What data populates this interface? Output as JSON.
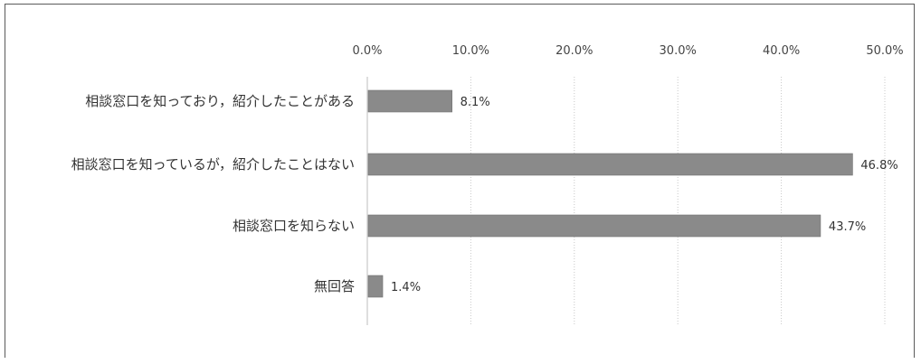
{
  "chart_data": {
    "type": "bar",
    "orientation": "horizontal",
    "title": "",
    "xlabel": "",
    "ylabel": "",
    "categories": [
      "相談窓口を知っており，紹介したことがある",
      "相談窓口を知っているが，紹介したことはない",
      "相談窓口を知らない",
      "無回答"
    ],
    "values": [
      8.1,
      46.8,
      43.7,
      1.4
    ],
    "data_labels": [
      "8.1%",
      "46.8%",
      "43.7%",
      "1.4%"
    ],
    "xlim": [
      0,
      50
    ],
    "ticks": [
      0,
      10,
      20,
      30,
      40,
      50
    ],
    "tick_labels": [
      "0.0%",
      "10.0%",
      "20.0%",
      "30.0%",
      "40.0%",
      "50.0%"
    ],
    "tick_position": "top",
    "grid": true,
    "legend": "none",
    "bar_color": "#8a8a8a"
  }
}
